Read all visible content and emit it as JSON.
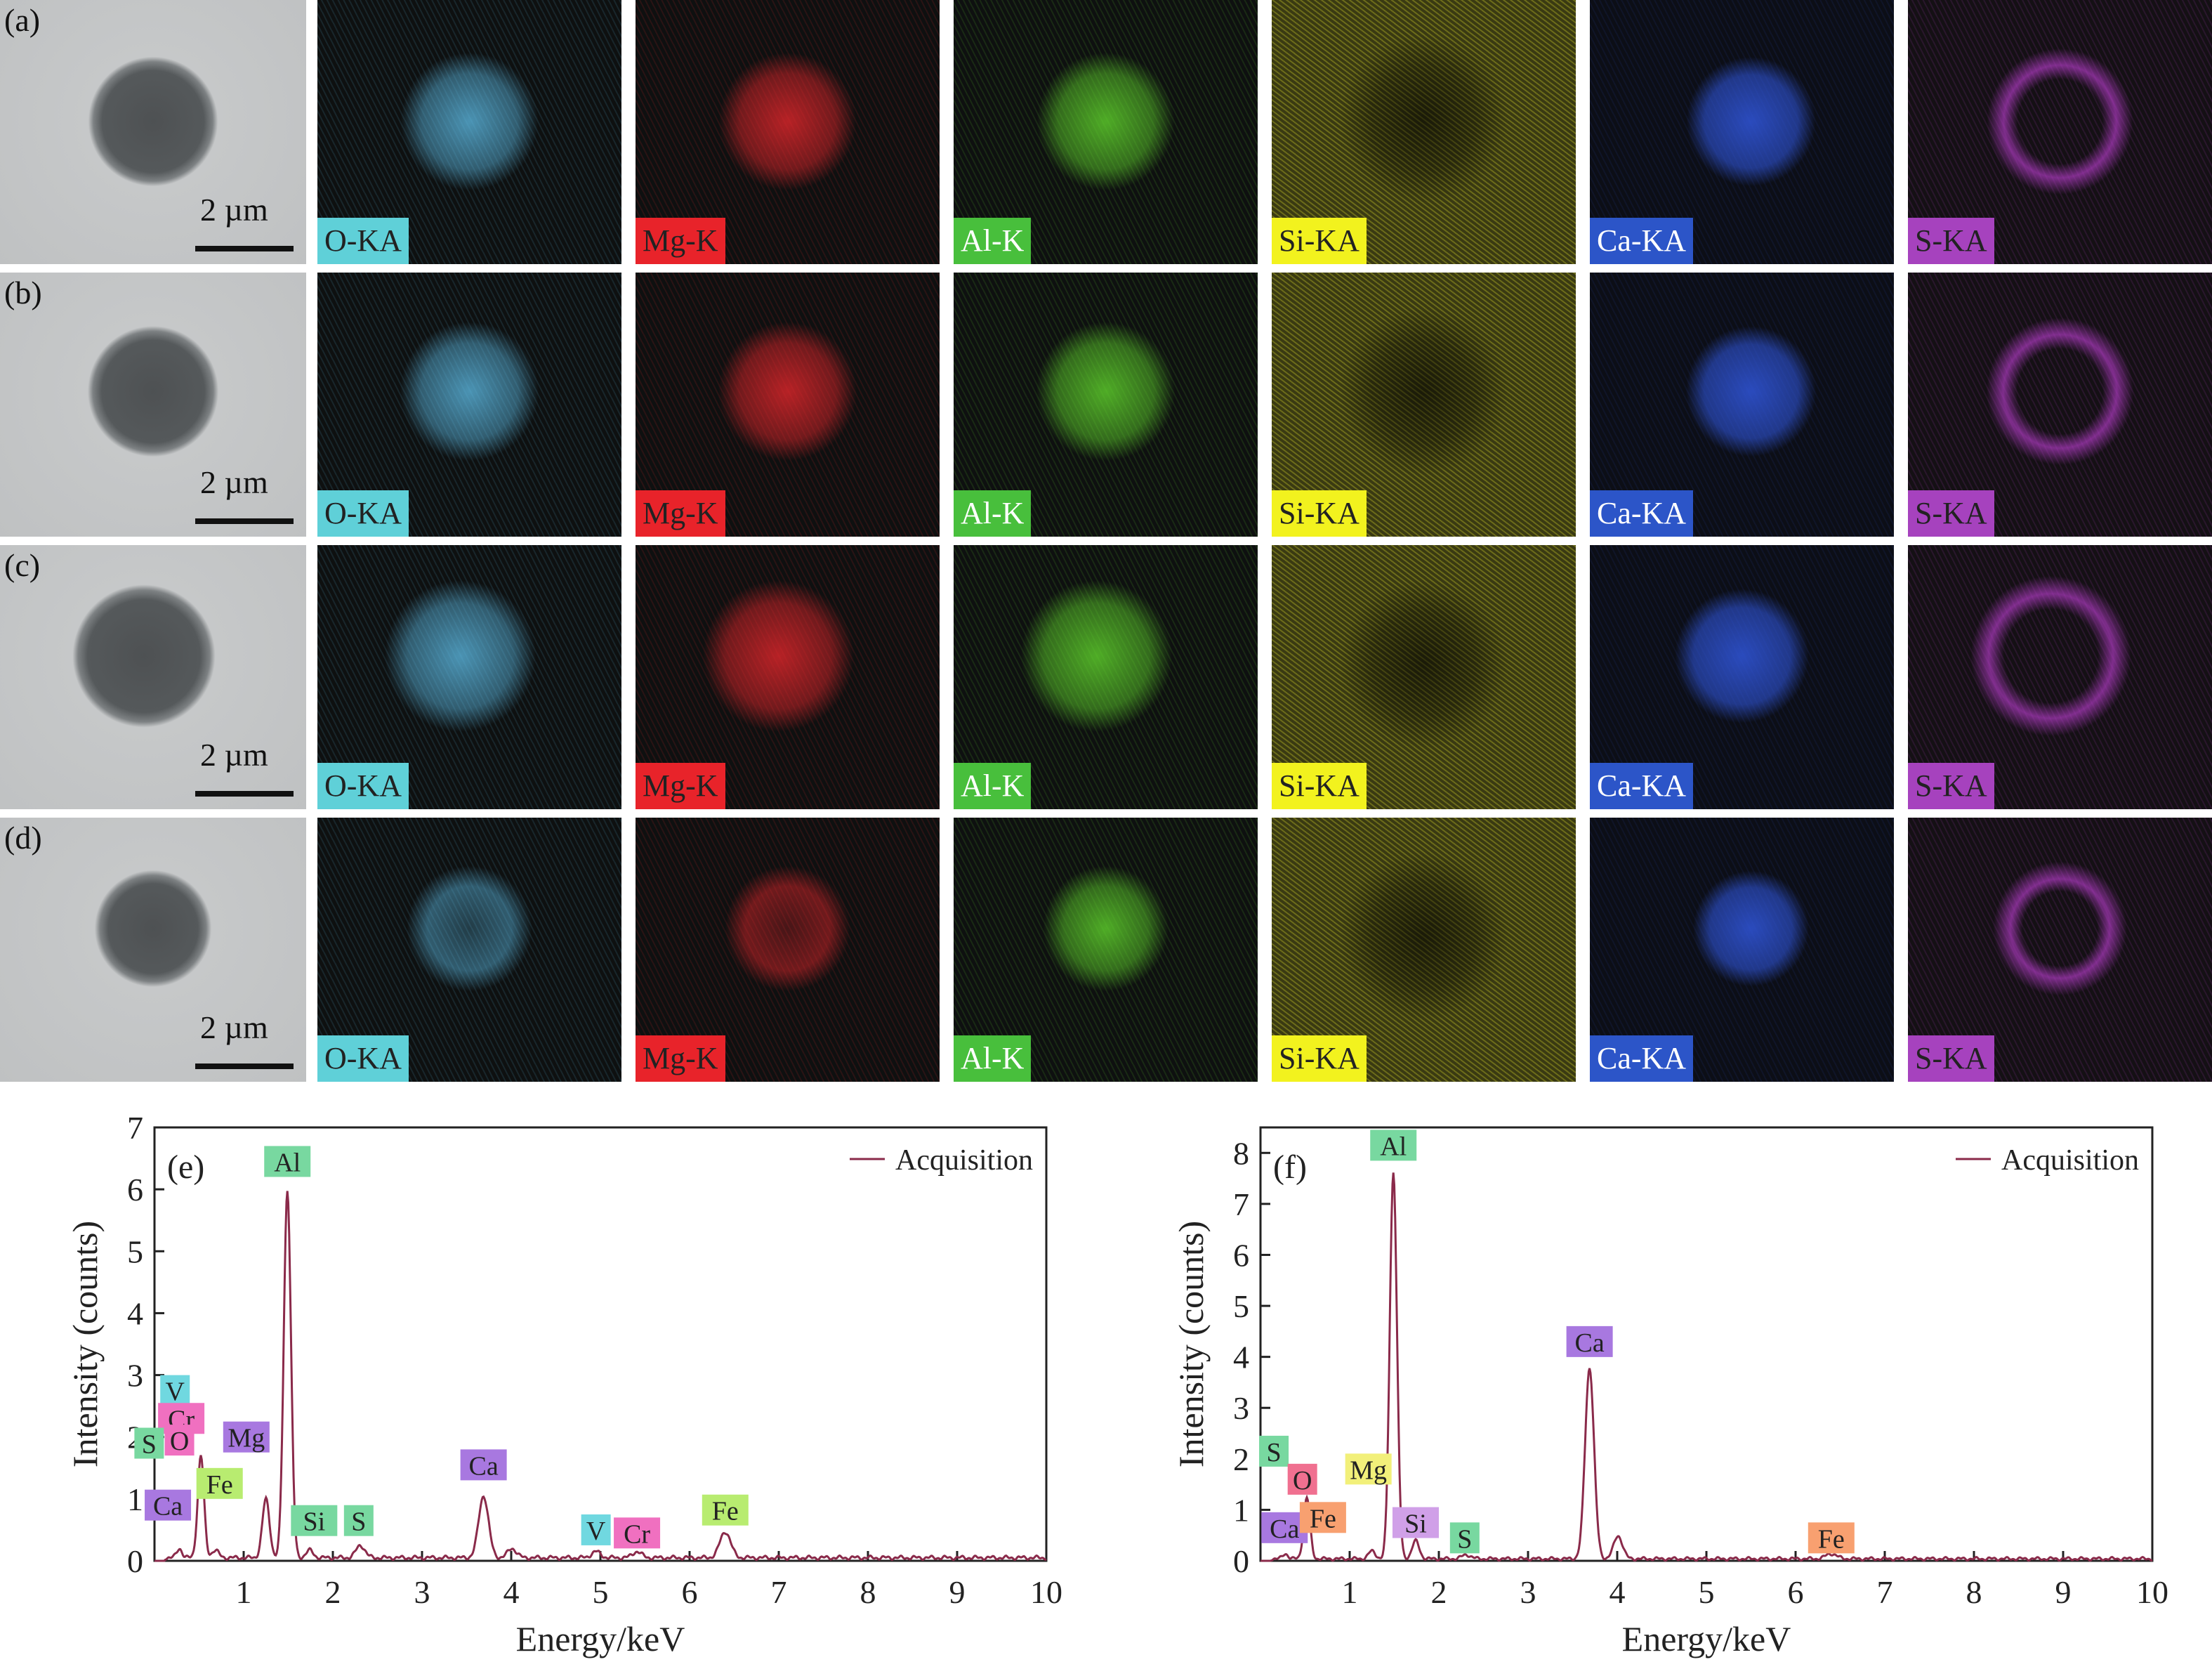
{
  "maps": {
    "rows": [
      {
        "tag": "(a)",
        "scale_label": "2 µm"
      },
      {
        "tag": "(b)",
        "scale_label": "2 µm"
      },
      {
        "tag": "(c)",
        "scale_label": "2 µm"
      },
      {
        "tag": "(d)",
        "scale_label": "2 µm"
      }
    ],
    "elements": [
      {
        "label": "O-KA",
        "color": "#5ab4dc",
        "label_bg": "#5fd0d8",
        "label_fg": "#222222"
      },
      {
        "label": "Mg-K",
        "color": "#e0262b",
        "label_bg": "#e8232a",
        "label_fg": "#222222"
      },
      {
        "label": "Al-K",
        "color": "#5fd22c",
        "label_bg": "#48bf3c",
        "label_fg": "#ffffff"
      },
      {
        "label": "Si-KA",
        "color": "#c8c82a",
        "label_bg": "#f2f21e",
        "label_fg": "#222222"
      },
      {
        "label": "Ca-KA",
        "color": "#2f54d6",
        "label_bg": "#2c55c8",
        "label_fg": "#ffffff"
      },
      {
        "label": "S-KA",
        "color": "#b43cc8",
        "label_bg": "#a642be",
        "label_fg": "#222222"
      }
    ]
  },
  "chart_data": [
    {
      "type": "line",
      "panel_tag": "(e)",
      "xlabel": "Energy/keV",
      "ylabel": "Intensity (counts)",
      "xlim": [
        0,
        10
      ],
      "ylim": [
        0,
        7
      ],
      "xticks": [
        1,
        2,
        3,
        4,
        5,
        6,
        7,
        8,
        9,
        10
      ],
      "yticks": [
        0,
        1,
        2,
        3,
        4,
        5,
        6,
        7
      ],
      "legend": {
        "label": "Acquisition",
        "position": "top-right"
      },
      "series": [
        {
          "name": "Acquisition",
          "color": "#8a2a4a",
          "baseline": 0.05,
          "peaks": [
            {
              "x": 0.28,
              "y": 0.15,
              "w": 0.03
            },
            {
              "x": 0.52,
              "y": 1.65,
              "w": 0.035
            },
            {
              "x": 0.68,
              "y": 0.12,
              "w": 0.04
            },
            {
              "x": 1.25,
              "y": 0.95,
              "w": 0.04
            },
            {
              "x": 1.49,
              "y": 5.95,
              "w": 0.04
            },
            {
              "x": 1.74,
              "y": 0.12,
              "w": 0.04
            },
            {
              "x": 2.31,
              "y": 0.2,
              "w": 0.05
            },
            {
              "x": 3.69,
              "y": 1.0,
              "w": 0.055
            },
            {
              "x": 4.01,
              "y": 0.15,
              "w": 0.05
            },
            {
              "x": 4.95,
              "y": 0.1,
              "w": 0.05
            },
            {
              "x": 5.41,
              "y": 0.1,
              "w": 0.05
            },
            {
              "x": 6.4,
              "y": 0.42,
              "w": 0.06
            }
          ]
        }
      ],
      "annotations": [
        {
          "text": "Al",
          "x": 1.49,
          "y": 6.45,
          "bg": "#78d8a0"
        },
        {
          "text": "V",
          "x": 0.23,
          "y": 2.75,
          "bg": "#70d8e0"
        },
        {
          "text": "Cr",
          "x": 0.3,
          "y": 2.3,
          "bg": "#f070c0"
        },
        {
          "text": "S",
          "x": -0.06,
          "y": 1.9,
          "bg": "#78d8a0"
        },
        {
          "text": "O",
          "x": 0.28,
          "y": 1.95,
          "bg": "#f070c0"
        },
        {
          "text": "Mg",
          "x": 1.03,
          "y": 2.0,
          "bg": "#a878e0"
        },
        {
          "text": "Fe",
          "x": 0.73,
          "y": 1.25,
          "bg": "#b8ec70"
        },
        {
          "text": "Ca",
          "x": 0.15,
          "y": 0.9,
          "bg": "#a878e0"
        },
        {
          "text": "Si",
          "x": 1.79,
          "y": 0.65,
          "bg": "#78d8a0"
        },
        {
          "text": "S",
          "x": 2.29,
          "y": 0.65,
          "bg": "#78d8a0"
        },
        {
          "text": "Ca",
          "x": 3.69,
          "y": 1.55,
          "bg": "#a878e0"
        },
        {
          "text": "V",
          "x": 4.95,
          "y": 0.5,
          "bg": "#70d8e0"
        },
        {
          "text": "Cr",
          "x": 5.41,
          "y": 0.45,
          "bg": "#f070c0"
        },
        {
          "text": "Fe",
          "x": 6.4,
          "y": 0.82,
          "bg": "#b8ec70"
        }
      ]
    },
    {
      "type": "line",
      "panel_tag": "(f)",
      "xlabel": "Energy/keV",
      "ylabel": "Intensity (counts)",
      "xlim": [
        0,
        10
      ],
      "ylim": [
        0,
        8.5
      ],
      "xticks": [
        1,
        2,
        3,
        4,
        5,
        6,
        7,
        8,
        9,
        10
      ],
      "yticks": [
        0,
        1,
        2,
        3,
        4,
        5,
        6,
        7,
        8
      ],
      "legend": {
        "label": "Acquisition",
        "position": "top-right"
      },
      "series": [
        {
          "name": "Acquisition",
          "color": "#8a2a4a",
          "baseline": 0.04,
          "peaks": [
            {
              "x": 0.28,
              "y": 0.1,
              "w": 0.03
            },
            {
              "x": 0.52,
              "y": 1.2,
              "w": 0.035
            },
            {
              "x": 1.25,
              "y": 0.15,
              "w": 0.04
            },
            {
              "x": 1.49,
              "y": 7.6,
              "w": 0.04
            },
            {
              "x": 1.74,
              "y": 0.35,
              "w": 0.04
            },
            {
              "x": 2.31,
              "y": 0.08,
              "w": 0.05
            },
            {
              "x": 3.69,
              "y": 3.75,
              "w": 0.05
            },
            {
              "x": 4.01,
              "y": 0.45,
              "w": 0.05
            },
            {
              "x": 6.4,
              "y": 0.1,
              "w": 0.06
            }
          ]
        }
      ],
      "annotations": [
        {
          "text": "Al",
          "x": 1.49,
          "y": 8.15,
          "bg": "#78d8a0"
        },
        {
          "text": "Ca",
          "x": 3.69,
          "y": 4.3,
          "bg": "#a878e0"
        },
        {
          "text": "S",
          "x": 0.15,
          "y": 2.15,
          "bg": "#78d8a0"
        },
        {
          "text": "O",
          "x": 0.47,
          "y": 1.6,
          "bg": "#f07090"
        },
        {
          "text": "Mg",
          "x": 1.21,
          "y": 1.8,
          "bg": "#f2f07a"
        },
        {
          "text": "Ca",
          "x": 0.27,
          "y": 0.65,
          "bg": "#a878e0"
        },
        {
          "text": "Fe",
          "x": 0.7,
          "y": 0.85,
          "bg": "#f8a070"
        },
        {
          "text": "Si",
          "x": 1.74,
          "y": 0.75,
          "bg": "#d0a0e8"
        },
        {
          "text": "S",
          "x": 2.29,
          "y": 0.45,
          "bg": "#78d8a0"
        },
        {
          "text": "Fe",
          "x": 6.4,
          "y": 0.45,
          "bg": "#f8a070"
        }
      ]
    }
  ]
}
